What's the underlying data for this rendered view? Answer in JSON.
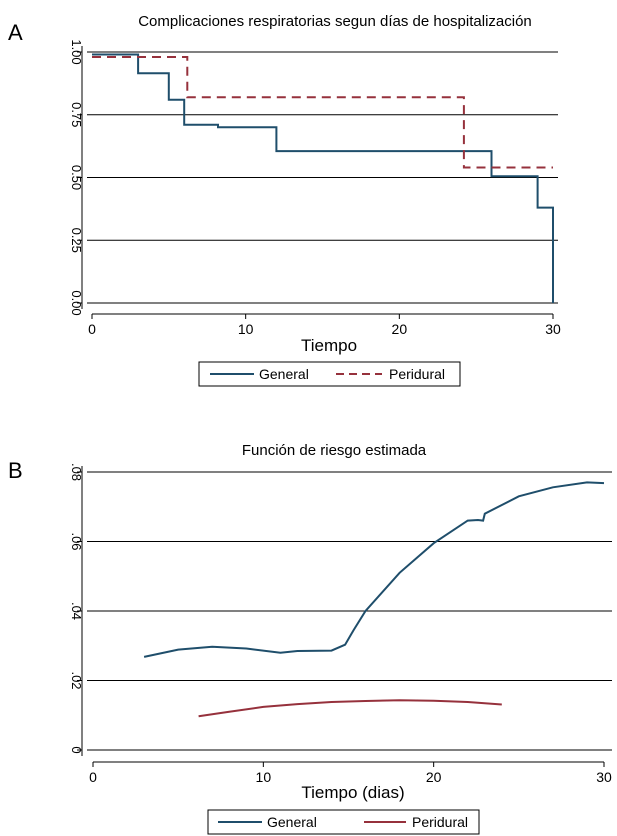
{
  "chart_data": [
    {
      "type": "line",
      "panel_label": "A",
      "title": "Complicaciones respiratorias segun días de hospitalización",
      "xlabel": "Tiempo",
      "ylabel": "",
      "xlim": [
        0,
        30
      ],
      "ylim": [
        0,
        1
      ],
      "x_ticks": [
        "0",
        "10",
        "20",
        "30"
      ],
      "y_ticks": [
        "0.00",
        "0.25",
        "0.50",
        "0.75",
        "1.00"
      ],
      "x_tick_values": [
        0,
        10,
        20,
        30
      ],
      "y_tick_values": [
        0,
        0.25,
        0.5,
        0.75,
        1
      ],
      "grid": true,
      "legend_position": "bottom",
      "series": [
        {
          "name": "General",
          "color": "#1f4e6b",
          "style": "step",
          "x": [
            0,
            3,
            5,
            6,
            8.2,
            12,
            26,
            29,
            30,
            30
          ],
          "y": [
            0.99,
            0.915,
            0.81,
            0.71,
            0.7,
            0.605,
            0.505,
            0.38,
            0.25,
            0.0
          ]
        },
        {
          "name": "Peridural",
          "color": "#96313c",
          "style": "step-dashed",
          "x": [
            0,
            6.2,
            24.2,
            30
          ],
          "y": [
            0.98,
            0.82,
            0.54,
            0.54
          ]
        }
      ]
    },
    {
      "type": "line",
      "panel_label": "B",
      "title": "Función de riesgo estimada",
      "xlabel": "Tiempo (dias)",
      "ylabel": "",
      "xlim": [
        0,
        30
      ],
      "ylim": [
        0,
        0.08
      ],
      "x_ticks": [
        "0",
        "10",
        "20",
        "30"
      ],
      "y_ticks": [
        "0",
        ".02",
        ".04",
        ".06",
        ".08"
      ],
      "x_tick_values": [
        0,
        10,
        20,
        30
      ],
      "y_tick_values": [
        0,
        0.02,
        0.04,
        0.06,
        0.08
      ],
      "grid": true,
      "legend_position": "bottom",
      "series": [
        {
          "name": "General",
          "color": "#1f4e6b",
          "style": "solid",
          "x": [
            3,
            5,
            7,
            9,
            11,
            12,
            14,
            14.8,
            15.3,
            16,
            18,
            20,
            22,
            22.6,
            22.9,
            23,
            25,
            27,
            29,
            30
          ],
          "y": [
            0.0268,
            0.0289,
            0.0297,
            0.0292,
            0.028,
            0.0285,
            0.0286,
            0.0303,
            0.0345,
            0.04,
            0.051,
            0.0595,
            0.066,
            0.0662,
            0.066,
            0.068,
            0.073,
            0.0756,
            0.077,
            0.0768
          ]
        },
        {
          "name": "Peridural",
          "color": "#96313c",
          "style": "solid",
          "x": [
            6.2,
            8,
            10,
            12,
            14,
            16,
            18,
            20,
            22,
            24
          ],
          "y": [
            0.0097,
            0.011,
            0.0124,
            0.0132,
            0.0138,
            0.0141,
            0.0143,
            0.0142,
            0.0138,
            0.0131
          ]
        }
      ]
    }
  ]
}
